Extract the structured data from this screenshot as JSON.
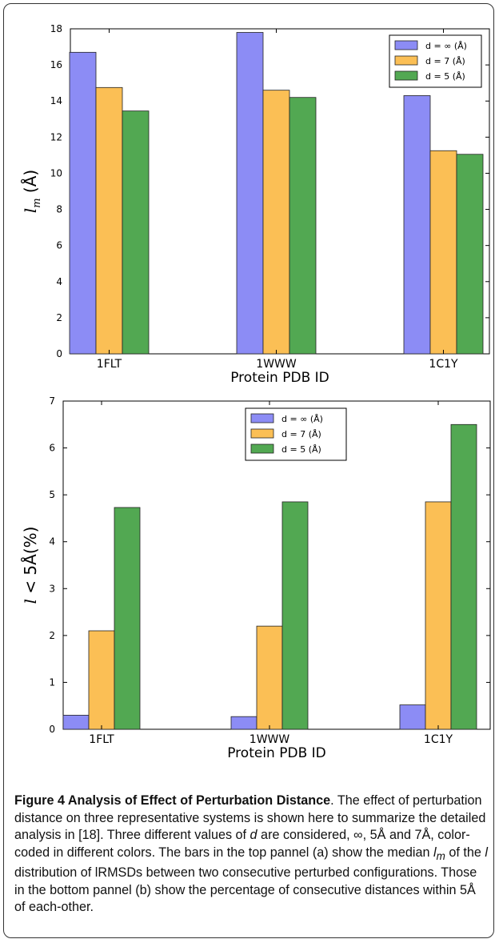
{
  "chart_data": [
    {
      "type": "bar",
      "panel": "a",
      "categories": [
        "1FLT",
        "1WWW",
        "1C1Y"
      ],
      "series": [
        {
          "name": "d = ∞ (Å)",
          "color": "#8c8cf5",
          "values": [
            16.7,
            17.8,
            14.3
          ]
        },
        {
          "name": "d = 7 (Å)",
          "color": "#fbbf55",
          "values": [
            14.75,
            14.6,
            11.25
          ]
        },
        {
          "name": "d = 5 (Å)",
          "color": "#52a852",
          "values": [
            13.45,
            14.2,
            11.05
          ]
        }
      ],
      "xlabel": "Protein PDB ID",
      "ylabel": "lm (Å)",
      "ylim": [
        0,
        18
      ],
      "yticks": [
        "0",
        "2",
        "4",
        "6",
        "8",
        "10",
        "12",
        "14",
        "16",
        "18"
      ],
      "legend": "top-right",
      "grid": false
    },
    {
      "type": "bar",
      "panel": "b",
      "categories": [
        "1FLT",
        "1WWW",
        "1C1Y"
      ],
      "series": [
        {
          "name": "d = ∞ (Å)",
          "color": "#8c8cf5",
          "values": [
            0.3,
            0.27,
            0.52
          ]
        },
        {
          "name": "d = 7 (Å)",
          "color": "#fbbf55",
          "values": [
            2.1,
            2.2,
            4.85
          ]
        },
        {
          "name": "d = 5 (Å)",
          "color": "#52a852",
          "values": [
            4.73,
            4.85,
            6.5
          ]
        }
      ],
      "xlabel": "Protein PDB ID",
      "ylabel": "l < 5Å(%)",
      "ylim": [
        0,
        7
      ],
      "yticks": [
        "0",
        "1",
        "2",
        "3",
        "4",
        "5",
        "6",
        "7"
      ],
      "legend": "top-center",
      "grid": false
    }
  ],
  "caption": {
    "label": "Figure 4 Analysis of Effect of Perturbation Distance",
    "text_1": ". The effect of perturbation distance on three representative systems is shown here to summarize the detailed analysis in [18]. Three different values of ",
    "d": "d",
    "text_2": " are considered, ∞, 5Å and 7Å, color-coded in different colors. The bars in the top pannel (a) show the median ",
    "lm_base": "l",
    "lm_sub": "m",
    "text_3": " of the ",
    "l": "l",
    "text_4": " distribution of lRMSDs between two consecutive perturbed configurations. Those in the bottom pannel (b) show the percentage of consecutive distances within 5Å of each-other."
  }
}
